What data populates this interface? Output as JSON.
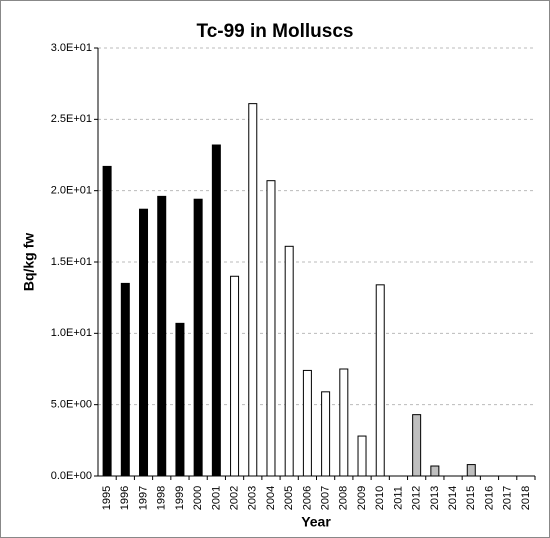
{
  "chart_data": {
    "type": "bar",
    "title": "Tc-99 in Molluscs",
    "x_label": "Year",
    "y_label": "Bq/kg fw",
    "categories": [
      "1995",
      "1996",
      "1997",
      "1998",
      "1999",
      "2000",
      "2001",
      "2002",
      "2003",
      "2004",
      "2005",
      "2006",
      "2007",
      "2008",
      "2009",
      "2010",
      "2011",
      "2012",
      "2013",
      "2014",
      "2015",
      "2016",
      "2017",
      "2018"
    ],
    "values": [
      21.7,
      13.5,
      18.7,
      19.6,
      10.7,
      19.4,
      23.2,
      14.0,
      26.1,
      20.7,
      16.1,
      7.4,
      5.9,
      7.5,
      2.8,
      13.4,
      null,
      4.3,
      0.7,
      null,
      0.8,
      null,
      null,
      null
    ],
    "colors": [
      "#000000",
      "#000000",
      "#000000",
      "#000000",
      "#000000",
      "#000000",
      "#000000",
      "#ffffff",
      "#ffffff",
      "#ffffff",
      "#ffffff",
      "#ffffff",
      "#ffffff",
      "#ffffff",
      "#ffffff",
      "#ffffff",
      null,
      "#bfbfbf",
      "#bfbfbf",
      null,
      "#bfbfbf",
      null,
      null,
      null
    ],
    "ylim": [
      0,
      30
    ],
    "yticks": [
      {
        "value": 0,
        "label": "0.0E+00"
      },
      {
        "value": 5,
        "label": "5.0E+00"
      },
      {
        "value": 10,
        "label": "1.0E+01"
      },
      {
        "value": 15,
        "label": "1.5E+01"
      },
      {
        "value": 20,
        "label": "2.0E+01"
      },
      {
        "value": 25,
        "label": "2.5E+01"
      },
      {
        "value": 30,
        "label": "3.0E+01"
      }
    ],
    "grid": true
  }
}
